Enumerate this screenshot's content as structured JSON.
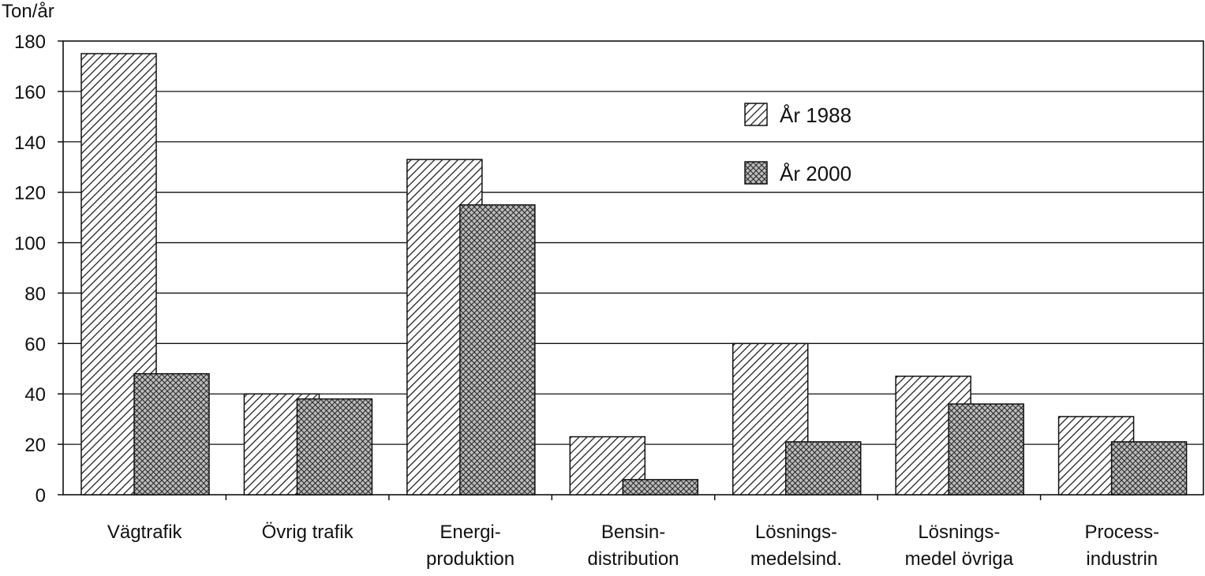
{
  "chart_data": {
    "type": "bar",
    "title": "",
    "xlabel": "",
    "ylabel": "Ton/år",
    "ylim": [
      0,
      180
    ],
    "yticks": [
      0,
      20,
      40,
      60,
      80,
      100,
      120,
      140,
      160,
      180
    ],
    "grid": true,
    "legend_placement": "top-right",
    "categories": [
      [
        "Vägtrafik"
      ],
      [
        "Övrig trafik"
      ],
      [
        "Energi-",
        "produktion"
      ],
      [
        "Bensin-",
        "distribution"
      ],
      [
        "Lösnings-",
        "medelsind."
      ],
      [
        "Lösnings-",
        "medel övriga"
      ],
      [
        "Process-",
        "industrin"
      ]
    ],
    "series": [
      {
        "name": "År 1988",
        "pattern": "diagonal-hatch",
        "values": [
          175,
          40,
          133,
          23,
          60,
          47,
          31
        ]
      },
      {
        "name": "År 2000",
        "pattern": "cross-hatch",
        "values": [
          48,
          38,
          115,
          6,
          21,
          36,
          21
        ]
      }
    ],
    "colors": {
      "ink": "#111111",
      "background": "#ffffff",
      "hatch2_fill": "#9a9a9a"
    }
  }
}
